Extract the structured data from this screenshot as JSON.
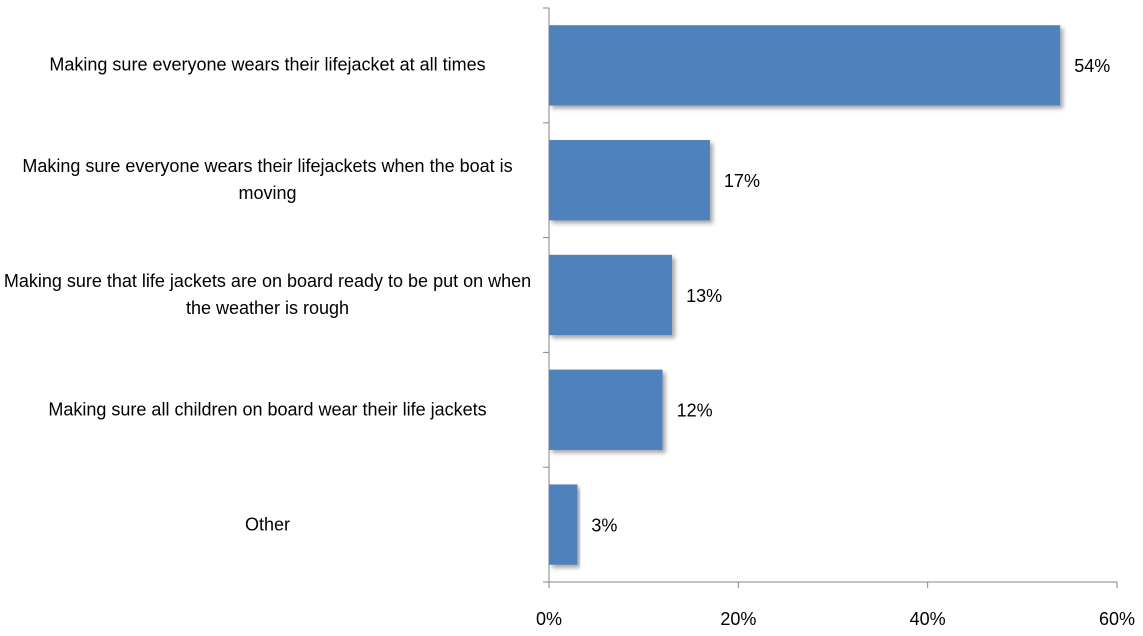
{
  "chart_data": {
    "type": "bar",
    "orientation": "horizontal",
    "categories": [
      "Making sure everyone wears their lifejacket at all times",
      "Making sure everyone wears their lifejackets when the boat is moving",
      "Making sure that life jackets are on board ready to be put on when the weather is rough",
      "Making sure all children on board wear their life jackets",
      "Other"
    ],
    "values": [
      54,
      17,
      13,
      12,
      3
    ],
    "value_labels": [
      "54%",
      "17%",
      "13%",
      "12%",
      "3%"
    ],
    "color": "#4f81bd",
    "xlim": [
      0,
      60
    ],
    "xticks": [
      {
        "value": 0,
        "label": "0%"
      },
      {
        "value": 20,
        "label": "20%"
      },
      {
        "value": 40,
        "label": "40%"
      },
      {
        "value": 60,
        "label": "60%"
      }
    ],
    "grid": false
  }
}
